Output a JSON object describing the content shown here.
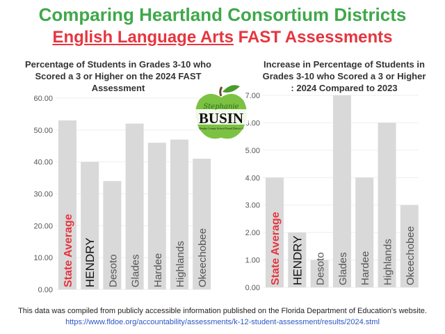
{
  "title": "Comparing Heartland Consortium Districts",
  "subtitle_underlined": "English Language Arts",
  "subtitle_rest": " FAST Assessments",
  "colors": {
    "title": "#3fa84a",
    "subtitle": "#e6353f",
    "bar": "#d9d9d9",
    "state_label": "#e6353f",
    "grid": "#eeeeee"
  },
  "logo": {
    "script_text": "Stephanie",
    "name": "BUSIN",
    "small_text": "Hendry County School Board District 4",
    "icon": "green-apple"
  },
  "chart_data": [
    {
      "type": "bar",
      "title": "Percentage of Students in Grades 3-10 who Scored a 3 or Higher on the 2024 FAST Assessment",
      "categories": [
        "State Average",
        "HENDRY",
        "Desoto",
        "Glades",
        "Hardee",
        "Highlands",
        "Okeechobee"
      ],
      "values": [
        53,
        40,
        34,
        52,
        46,
        47,
        41
      ],
      "ylim": [
        0,
        60
      ],
      "yticks": [
        "0.00",
        "10.00",
        "20.00",
        "30.00",
        "40.00",
        "50.00",
        "60.00"
      ],
      "grid": true
    },
    {
      "type": "bar",
      "title": "Increase in Percentage of Students in Grades 3-10 who Scored a 3 or Higher : 2024 Compared to 2023",
      "categories": [
        "State Average",
        "HENDRY",
        "Desoto",
        "Glades",
        "Hardee",
        "Highlands",
        "Okeechobee"
      ],
      "values": [
        4,
        2,
        1,
        7,
        4,
        6,
        3
      ],
      "ylim": [
        0,
        7
      ],
      "yticks": [
        "0.00",
        "1.00",
        "2.00",
        "3.00",
        "4.00",
        "5.00",
        "6.00",
        "7.00"
      ],
      "grid": true
    }
  ],
  "footer": {
    "note": "This data was compiled from publicly accessible information published on the Florida Department of Education's website.",
    "url": "https://www.fldoe.org/accountability/assessments/k-12-student-assessment/results/2024.stml"
  }
}
